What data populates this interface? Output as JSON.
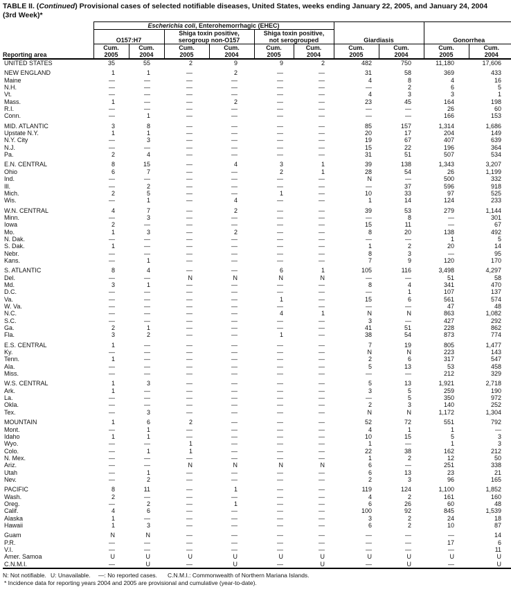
{
  "title": {
    "prefix": "TABLE II. (",
    "continued": "Continued",
    "rest": ") Provisional cases of selected notifiable diseases, United States, weeks ending January 22, 2005, and January 24, 2004",
    "line2": "(3rd Week)*"
  },
  "table": {
    "stub_label": "Reporting area",
    "ehec_group": {
      "italic": "Escherichia coli",
      "rest": ", Enterohemorrhagic (EHEC)"
    },
    "subgroups": {
      "o157": "O157:H7",
      "shiga_non_o157_line1": "Shiga toxin positive,",
      "shiga_non_o157_line2": "serogroup non-O157",
      "shiga_not_sero_line1": "Shiga toxin positive,",
      "shiga_not_sero_line2": "not serogrouped"
    },
    "giardiasis_label": "Giardiasis",
    "gonorrhea_label": "Gonorrhea",
    "cum_label": "Cum.",
    "years": [
      "2005",
      "2004",
      "2005",
      "2004",
      "2005",
      "2004",
      "2005",
      "2004",
      "2005",
      "2004"
    ],
    "rows": [
      {
        "area": "UNITED STATES",
        "gap": false,
        "v": [
          "35",
          "55",
          "2",
          "9",
          "9",
          "2",
          "482",
          "750",
          "11,180",
          "17,606"
        ]
      },
      {
        "area": "NEW ENGLAND",
        "gap": true,
        "v": [
          "1",
          "1",
          "—",
          "2",
          "—",
          "—",
          "31",
          "58",
          "369",
          "433"
        ]
      },
      {
        "area": "Maine",
        "gap": false,
        "v": [
          "—",
          "—",
          "—",
          "—",
          "—",
          "—",
          "4",
          "8",
          "4",
          "16"
        ]
      },
      {
        "area": "N.H.",
        "gap": false,
        "v": [
          "—",
          "—",
          "—",
          "—",
          "—",
          "—",
          "—",
          "2",
          "6",
          "5"
        ]
      },
      {
        "area": "Vt.",
        "gap": false,
        "v": [
          "—",
          "—",
          "—",
          "—",
          "—",
          "—",
          "4",
          "3",
          "3",
          "1"
        ]
      },
      {
        "area": "Mass.",
        "gap": false,
        "v": [
          "1",
          "—",
          "—",
          "2",
          "—",
          "—",
          "23",
          "45",
          "164",
          "198"
        ]
      },
      {
        "area": "R.I.",
        "gap": false,
        "v": [
          "—",
          "—",
          "—",
          "—",
          "—",
          "—",
          "—",
          "—",
          "26",
          "60"
        ]
      },
      {
        "area": "Conn.",
        "gap": false,
        "v": [
          "—",
          "1",
          "—",
          "—",
          "—",
          "—",
          "—",
          "—",
          "166",
          "153"
        ]
      },
      {
        "area": "MID. ATLANTIC",
        "gap": true,
        "v": [
          "3",
          "8",
          "—",
          "—",
          "—",
          "—",
          "85",
          "157",
          "1,314",
          "1,686"
        ]
      },
      {
        "area": "Upstate N.Y.",
        "gap": false,
        "v": [
          "1",
          "1",
          "—",
          "—",
          "—",
          "—",
          "20",
          "17",
          "204",
          "149"
        ]
      },
      {
        "area": "N.Y. City",
        "gap": false,
        "v": [
          "—",
          "3",
          "—",
          "—",
          "—",
          "—",
          "19",
          "67",
          "407",
          "639"
        ]
      },
      {
        "area": "N.J.",
        "gap": false,
        "v": [
          "—",
          "—",
          "—",
          "—",
          "—",
          "—",
          "15",
          "22",
          "196",
          "364"
        ]
      },
      {
        "area": "Pa.",
        "gap": false,
        "v": [
          "2",
          "4",
          "—",
          "—",
          "—",
          "—",
          "31",
          "51",
          "507",
          "534"
        ]
      },
      {
        "area": "E.N. CENTRAL",
        "gap": true,
        "v": [
          "8",
          "15",
          "—",
          "4",
          "3",
          "1",
          "39",
          "138",
          "1,343",
          "3,207"
        ]
      },
      {
        "area": "Ohio",
        "gap": false,
        "v": [
          "6",
          "7",
          "—",
          "—",
          "2",
          "1",
          "28",
          "54",
          "26",
          "1,199"
        ]
      },
      {
        "area": "Ind.",
        "gap": false,
        "v": [
          "—",
          "—",
          "—",
          "—",
          "—",
          "—",
          "N",
          "—",
          "500",
          "332"
        ]
      },
      {
        "area": "Ill.",
        "gap": false,
        "v": [
          "—",
          "2",
          "—",
          "—",
          "—",
          "—",
          "—",
          "37",
          "596",
          "918"
        ]
      },
      {
        "area": "Mich.",
        "gap": false,
        "v": [
          "2",
          "5",
          "—",
          "—",
          "1",
          "—",
          "10",
          "33",
          "97",
          "525"
        ]
      },
      {
        "area": "Wis.",
        "gap": false,
        "v": [
          "—",
          "1",
          "—",
          "4",
          "—",
          "—",
          "1",
          "14",
          "124",
          "233"
        ]
      },
      {
        "area": "W.N. CENTRAL",
        "gap": true,
        "v": [
          "4",
          "7",
          "—",
          "2",
          "—",
          "—",
          "39",
          "53",
          "279",
          "1,144"
        ]
      },
      {
        "area": "Minn.",
        "gap": false,
        "v": [
          "—",
          "3",
          "—",
          "—",
          "—",
          "—",
          "—",
          "8",
          "—",
          "301"
        ]
      },
      {
        "area": "Iowa",
        "gap": false,
        "v": [
          "2",
          "—",
          "—",
          "—",
          "—",
          "—",
          "15",
          "11",
          "—",
          "67"
        ]
      },
      {
        "area": "Mo.",
        "gap": false,
        "v": [
          "1",
          "3",
          "—",
          "2",
          "—",
          "—",
          "8",
          "20",
          "138",
          "492"
        ]
      },
      {
        "area": "N. Dak.",
        "gap": false,
        "v": [
          "—",
          "—",
          "—",
          "—",
          "—",
          "—",
          "—",
          "—",
          "1",
          "5"
        ]
      },
      {
        "area": "S. Dak.",
        "gap": false,
        "v": [
          "1",
          "—",
          "—",
          "—",
          "—",
          "—",
          "1",
          "2",
          "20",
          "14"
        ]
      },
      {
        "area": "Nebr.",
        "gap": false,
        "v": [
          "—",
          "—",
          "—",
          "—",
          "—",
          "—",
          "8",
          "3",
          "—",
          "95"
        ]
      },
      {
        "area": "Kans.",
        "gap": false,
        "v": [
          "—",
          "1",
          "—",
          "—",
          "—",
          "—",
          "7",
          "9",
          "120",
          "170"
        ]
      },
      {
        "area": "S. ATLANTIC",
        "gap": true,
        "v": [
          "8",
          "4",
          "—",
          "—",
          "6",
          "1",
          "105",
          "116",
          "3,498",
          "4,297"
        ]
      },
      {
        "area": "Del.",
        "gap": false,
        "v": [
          "—",
          "—",
          "N",
          "N",
          "N",
          "N",
          "—",
          "—",
          "51",
          "58"
        ]
      },
      {
        "area": "Md.",
        "gap": false,
        "v": [
          "3",
          "1",
          "—",
          "—",
          "—",
          "—",
          "8",
          "4",
          "341",
          "470"
        ]
      },
      {
        "area": "D.C.",
        "gap": false,
        "v": [
          "—",
          "—",
          "—",
          "—",
          "—",
          "—",
          "—",
          "1",
          "107",
          "137"
        ]
      },
      {
        "area": "Va.",
        "gap": false,
        "v": [
          "—",
          "—",
          "—",
          "—",
          "1",
          "—",
          "15",
          "6",
          "561",
          "574"
        ]
      },
      {
        "area": "W. Va.",
        "gap": false,
        "v": [
          "—",
          "—",
          "—",
          "—",
          "—",
          "—",
          "—",
          "—",
          "47",
          "48"
        ]
      },
      {
        "area": "N.C.",
        "gap": false,
        "v": [
          "—",
          "—",
          "—",
          "—",
          "4",
          "1",
          "N",
          "N",
          "863",
          "1,082"
        ]
      },
      {
        "area": "S.C.",
        "gap": false,
        "v": [
          "—",
          "—",
          "—",
          "—",
          "—",
          "—",
          "3",
          "—",
          "427",
          "292"
        ]
      },
      {
        "area": "Ga.",
        "gap": false,
        "v": [
          "2",
          "1",
          "—",
          "—",
          "—",
          "—",
          "41",
          "51",
          "228",
          "862"
        ]
      },
      {
        "area": "Fla.",
        "gap": false,
        "v": [
          "3",
          "2",
          "—",
          "—",
          "1",
          "—",
          "38",
          "54",
          "873",
          "774"
        ]
      },
      {
        "area": "E.S. CENTRAL",
        "gap": true,
        "v": [
          "1",
          "—",
          "—",
          "—",
          "—",
          "—",
          "7",
          "19",
          "805",
          "1,477"
        ]
      },
      {
        "area": "Ky.",
        "gap": false,
        "v": [
          "—",
          "—",
          "—",
          "—",
          "—",
          "—",
          "N",
          "N",
          "223",
          "143"
        ]
      },
      {
        "area": "Tenn.",
        "gap": false,
        "v": [
          "1",
          "—",
          "—",
          "—",
          "—",
          "—",
          "2",
          "6",
          "317",
          "547"
        ]
      },
      {
        "area": "Ala.",
        "gap": false,
        "v": [
          "—",
          "—",
          "—",
          "—",
          "—",
          "—",
          "5",
          "13",
          "53",
          "458"
        ]
      },
      {
        "area": "Miss.",
        "gap": false,
        "v": [
          "—",
          "—",
          "—",
          "—",
          "—",
          "—",
          "—",
          "—",
          "212",
          "329"
        ]
      },
      {
        "area": "W.S. CENTRAL",
        "gap": true,
        "v": [
          "1",
          "3",
          "—",
          "—",
          "—",
          "—",
          "5",
          "13",
          "1,921",
          "2,718"
        ]
      },
      {
        "area": "Ark.",
        "gap": false,
        "v": [
          "1",
          "—",
          "—",
          "—",
          "—",
          "—",
          "3",
          "5",
          "259",
          "190"
        ]
      },
      {
        "area": "La.",
        "gap": false,
        "v": [
          "—",
          "—",
          "—",
          "—",
          "—",
          "—",
          "—",
          "5",
          "350",
          "972"
        ]
      },
      {
        "area": "Okla.",
        "gap": false,
        "v": [
          "—",
          "—",
          "—",
          "—",
          "—",
          "—",
          "2",
          "3",
          "140",
          "252"
        ]
      },
      {
        "area": "Tex.",
        "gap": false,
        "v": [
          "—",
          "3",
          "—",
          "—",
          "—",
          "—",
          "N",
          "N",
          "1,172",
          "1,304"
        ]
      },
      {
        "area": "MOUNTAIN",
        "gap": true,
        "v": [
          "1",
          "6",
          "2",
          "—",
          "—",
          "—",
          "52",
          "72",
          "551",
          "792"
        ]
      },
      {
        "area": "Mont.",
        "gap": false,
        "v": [
          "—",
          "1",
          "—",
          "—",
          "—",
          "—",
          "4",
          "1",
          "1",
          "—"
        ]
      },
      {
        "area": "Idaho",
        "gap": false,
        "v": [
          "1",
          "1",
          "—",
          "—",
          "—",
          "—",
          "10",
          "15",
          "5",
          "3"
        ]
      },
      {
        "area": "Wyo.",
        "gap": false,
        "v": [
          "—",
          "—",
          "1",
          "—",
          "—",
          "—",
          "1",
          "—",
          "1",
          "3"
        ]
      },
      {
        "area": "Colo.",
        "gap": false,
        "v": [
          "—",
          "1",
          "1",
          "—",
          "—",
          "—",
          "22",
          "38",
          "162",
          "212"
        ]
      },
      {
        "area": "N. Mex.",
        "gap": false,
        "v": [
          "—",
          "—",
          "—",
          "—",
          "—",
          "—",
          "1",
          "2",
          "12",
          "50"
        ]
      },
      {
        "area": "Ariz.",
        "gap": false,
        "v": [
          "—",
          "—",
          "N",
          "N",
          "N",
          "N",
          "6",
          "—",
          "251",
          "338"
        ]
      },
      {
        "area": "Utah",
        "gap": false,
        "v": [
          "—",
          "1",
          "—",
          "—",
          "—",
          "—",
          "6",
          "13",
          "23",
          "21"
        ]
      },
      {
        "area": "Nev.",
        "gap": false,
        "v": [
          "—",
          "2",
          "—",
          "—",
          "—",
          "—",
          "2",
          "3",
          "96",
          "165"
        ]
      },
      {
        "area": "PACIFIC",
        "gap": true,
        "v": [
          "8",
          "11",
          "—",
          "1",
          "—",
          "—",
          "119",
          "124",
          "1,100",
          "1,852"
        ]
      },
      {
        "area": "Wash.",
        "gap": false,
        "v": [
          "2",
          "—",
          "—",
          "—",
          "—",
          "—",
          "4",
          "2",
          "161",
          "160"
        ]
      },
      {
        "area": "Oreg.",
        "gap": false,
        "v": [
          "—",
          "2",
          "—",
          "1",
          "—",
          "—",
          "6",
          "26",
          "60",
          "48"
        ]
      },
      {
        "area": "Calif.",
        "gap": false,
        "v": [
          "4",
          "6",
          "—",
          "—",
          "—",
          "—",
          "100",
          "92",
          "845",
          "1,539"
        ]
      },
      {
        "area": "Alaska",
        "gap": false,
        "v": [
          "1",
          "—",
          "—",
          "—",
          "—",
          "—",
          "3",
          "2",
          "24",
          "18"
        ]
      },
      {
        "area": "Hawaii",
        "gap": false,
        "v": [
          "1",
          "3",
          "—",
          "—",
          "—",
          "—",
          "6",
          "2",
          "10",
          "87"
        ]
      },
      {
        "area": "Guam",
        "gap": true,
        "v": [
          "N",
          "N",
          "—",
          "—",
          "—",
          "—",
          "—",
          "—",
          "—",
          "14"
        ]
      },
      {
        "area": "P.R.",
        "gap": false,
        "v": [
          "—",
          "—",
          "—",
          "—",
          "—",
          "—",
          "—",
          "—",
          "17",
          "6"
        ]
      },
      {
        "area": "V.I.",
        "gap": false,
        "v": [
          "—",
          "—",
          "—",
          "—",
          "—",
          "—",
          "—",
          "—",
          "—",
          "11"
        ]
      },
      {
        "area": "Amer. Samoa",
        "gap": false,
        "v": [
          "U",
          "U",
          "U",
          "U",
          "U",
          "U",
          "U",
          "U",
          "U",
          "U"
        ]
      },
      {
        "area": "C.N.M.I.",
        "gap": false,
        "v": [
          "—",
          "U",
          "—",
          "U",
          "—",
          "U",
          "—",
          "U",
          "—",
          "U"
        ]
      }
    ]
  },
  "footnotes": {
    "n": "N: Not notifiable.",
    "u": "U: Unavailable.",
    "dash": "—: No reported cases.",
    "cnmi": "C.N.M.I.: Commonwealth of Northern Mariana Islands.",
    "asterisk": "* Incidence data for reporting years 2004 and 2005 are provisional and cumulative (year-to-date)."
  },
  "colors": {
    "text": "#111111",
    "background": "#ffffff",
    "rule": "#000000"
  }
}
